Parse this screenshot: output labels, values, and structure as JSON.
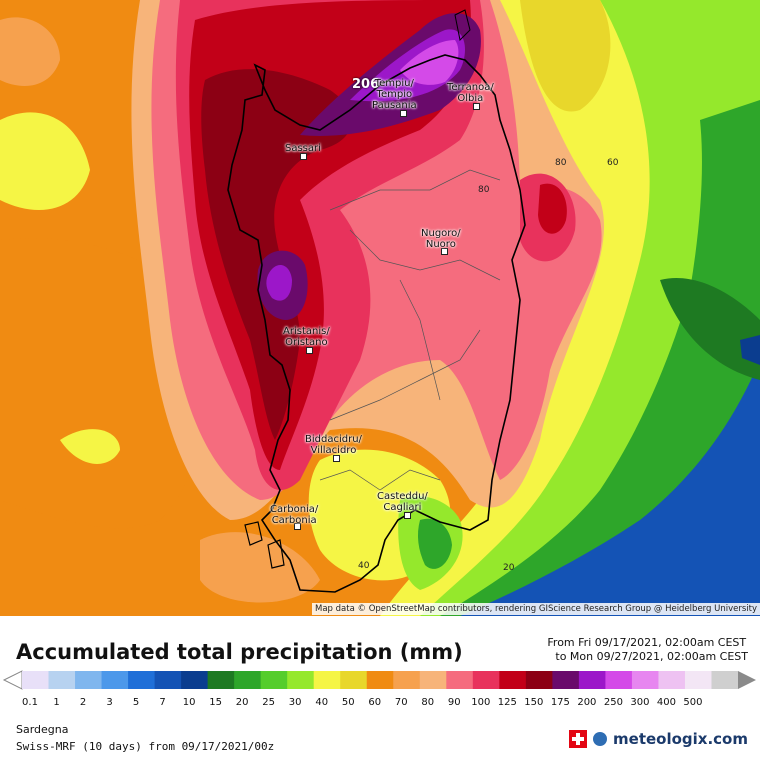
{
  "title": "Accumulated total precipitation (mm)",
  "period": {
    "from": "From Fri 09/17/2021, 02:00am CEST",
    "to": "to Mon 09/27/2021, 02:00am CEST"
  },
  "region": "Sardegna",
  "model": "Swiss-MRF (10 days) from 09/17/2021/00z",
  "brand": "meteologix.com",
  "attribution": "Map data © OpenStreetMap contributors, rendering GIScience Research Group @ Heidelberg University",
  "max_value": "206",
  "cities": [
    {
      "name": "Tempiu/\nTempio\nPausania"
    },
    {
      "name": "Terranoa/\nOlbia"
    },
    {
      "name": "Sassari"
    },
    {
      "name": "Nugoro/\nNuoro"
    },
    {
      "name": "Aristanis/\nOristano"
    },
    {
      "name": "Biddacidru/\nVillacidro"
    },
    {
      "name": "Casteddu/\nCagliari"
    },
    {
      "name": "Carbonia/\nCarbonia"
    }
  ],
  "contour_labels": [
    "80",
    "60",
    "80",
    "20",
    "40"
  ],
  "legend": {
    "ticks": [
      "0.1",
      "1",
      "2",
      "3",
      "5",
      "7",
      "10",
      "15",
      "20",
      "25",
      "30",
      "40",
      "50",
      "60",
      "70",
      "80",
      "90",
      "100",
      "125",
      "150",
      "175",
      "200",
      "250",
      "300",
      "400",
      "500"
    ],
    "colors": [
      "#e8e0f8",
      "#b7d2f0",
      "#7fb6ee",
      "#4c98ea",
      "#1f6fd8",
      "#1453b5",
      "#0b3d8f",
      "#1e7a22",
      "#2ea62a",
      "#55cd2c",
      "#95e82c",
      "#f5f545",
      "#e8d72b",
      "#f08b12",
      "#f6a14e",
      "#f7b47a",
      "#f56c7e",
      "#e8325c",
      "#c20018",
      "#8c0014",
      "#6a0a6b",
      "#9c17c9",
      "#d44ae8",
      "#e786f0",
      "#eec2f2",
      "#f3e6f5",
      "#cfcfcf"
    ]
  }
}
